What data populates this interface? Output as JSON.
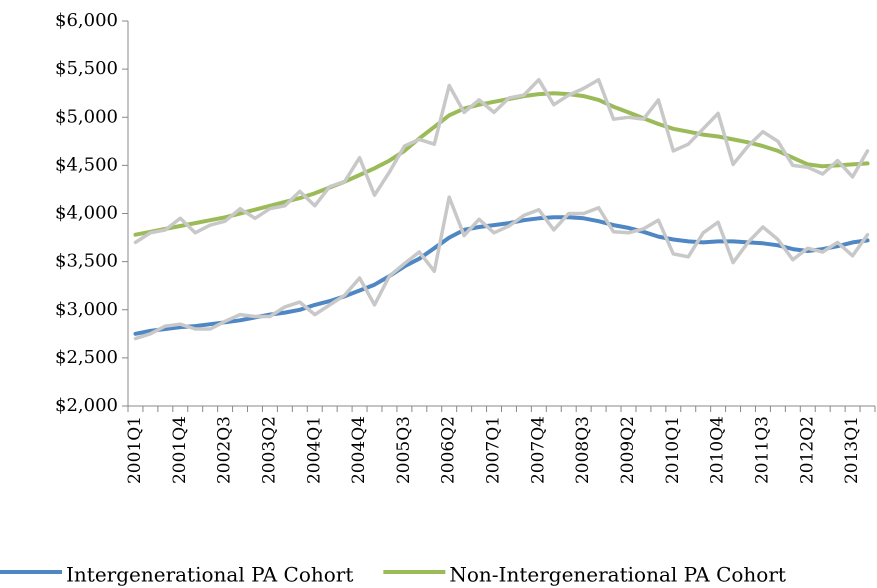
{
  "chart_data": {
    "type": "line",
    "categories": [
      "2001Q1",
      null,
      null,
      "2001Q4",
      null,
      null,
      "2002Q3",
      null,
      null,
      "2003Q2",
      null,
      null,
      "2004Q1",
      null,
      null,
      "2004Q4",
      null,
      null,
      "2005Q3",
      null,
      null,
      "2006Q2",
      null,
      null,
      "2007Q1",
      null,
      null,
      "2007Q4",
      null,
      null,
      "2008Q3",
      null,
      null,
      "2009Q2",
      null,
      null,
      "2010Q1",
      null,
      null,
      "2010Q4",
      null,
      null,
      "2011Q3",
      null,
      null,
      "2012Q2",
      null,
      null,
      "2013Q1",
      null
    ],
    "series": [
      {
        "name": "Intergenerational PA Cohort",
        "color": "#4f87c4",
        "values": [
          2750,
          2780,
          2800,
          2820,
          2830,
          2850,
          2870,
          2890,
          2920,
          2950,
          2970,
          3000,
          3050,
          3090,
          3140,
          3200,
          3260,
          3350,
          3450,
          3530,
          3640,
          3750,
          3830,
          3860,
          3880,
          3900,
          3930,
          3950,
          3960,
          3960,
          3950,
          3920,
          3880,
          3850,
          3810,
          3760,
          3730,
          3710,
          3700,
          3710,
          3710,
          3700,
          3690,
          3670,
          3630,
          3610,
          3630,
          3660,
          3700,
          3720
        ]
      },
      {
        "name": "Non-Intergenerational PA Cohort",
        "color": "#9bbb59",
        "values": [
          3780,
          3810,
          3840,
          3870,
          3900,
          3930,
          3960,
          4000,
          4040,
          4080,
          4120,
          4160,
          4210,
          4270,
          4330,
          4400,
          4470,
          4550,
          4650,
          4780,
          4900,
          5020,
          5090,
          5130,
          5160,
          5190,
          5220,
          5240,
          5250,
          5240,
          5220,
          5180,
          5110,
          5050,
          4990,
          4930,
          4880,
          4850,
          4820,
          4800,
          4770,
          4740,
          4700,
          4650,
          4580,
          4510,
          4490,
          4500,
          4510,
          4520
        ]
      },
      {
        "color": "#c8c8c8",
        "values": [
          3700,
          3800,
          3830,
          3950,
          3800,
          3880,
          3920,
          4050,
          3950,
          4050,
          4080,
          4230,
          4080,
          4280,
          4330,
          4580,
          4190,
          4430,
          4700,
          4770,
          4720,
          5330,
          5050,
          5180,
          5050,
          5200,
          5230,
          5390,
          5130,
          5230,
          5300,
          5390,
          4980,
          5000,
          4980,
          5180,
          4650,
          4720,
          4880,
          5040,
          4510,
          4700,
          4850,
          4750,
          4500,
          4480,
          4410,
          4550,
          4380,
          4650
        ]
      },
      {
        "color": "#c8c8c8",
        "values": [
          2700,
          2750,
          2830,
          2850,
          2800,
          2800,
          2880,
          2950,
          2930,
          2930,
          3030,
          3080,
          2950,
          3050,
          3150,
          3330,
          3050,
          3350,
          3480,
          3600,
          3400,
          4170,
          3770,
          3940,
          3800,
          3870,
          3980,
          4040,
          3830,
          4000,
          4000,
          4060,
          3810,
          3800,
          3840,
          3930,
          3580,
          3550,
          3800,
          3910,
          3490,
          3700,
          3860,
          3730,
          3520,
          3640,
          3600,
          3700,
          3560,
          3780
        ]
      }
    ],
    "ylim": [
      2000,
      6000
    ],
    "yticks": [
      {
        "value": 2000,
        "label": "$2,000"
      },
      {
        "value": 2500,
        "label": "$2,500"
      },
      {
        "value": 3000,
        "label": "$3,000"
      },
      {
        "value": 3500,
        "label": "$3,500"
      },
      {
        "value": 4000,
        "label": "$4,000"
      },
      {
        "value": 4500,
        "label": "$4,500"
      },
      {
        "value": 5000,
        "label": "$5,000"
      },
      {
        "value": 5500,
        "label": "$5,500"
      },
      {
        "value": 6000,
        "label": "$6,000"
      }
    ],
    "grid": false,
    "legend": "bottom"
  }
}
